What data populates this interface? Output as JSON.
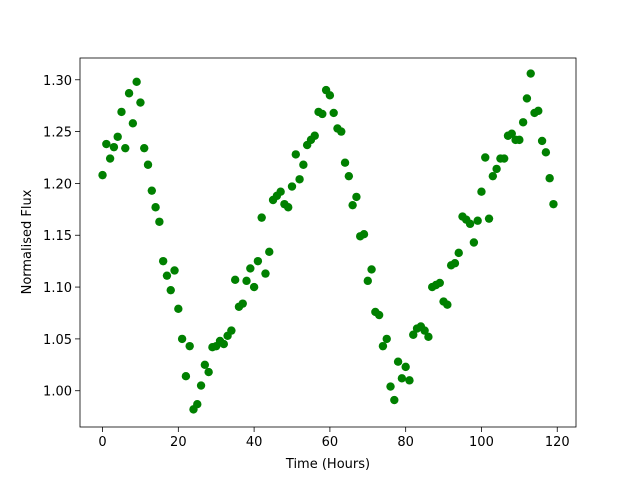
{
  "chart_data": {
    "type": "scatter",
    "xlabel": "Time (Hours)",
    "ylabel": "Normalised Flux",
    "color": "#008000",
    "x": [
      0,
      1,
      2,
      3,
      4,
      5,
      6,
      7,
      8,
      9,
      10,
      11,
      12,
      13,
      14,
      15,
      16,
      17,
      18,
      19,
      20,
      21,
      22,
      23,
      24,
      25,
      26,
      27,
      28,
      29,
      30,
      31,
      32,
      33,
      34,
      35,
      36,
      37,
      38,
      39,
      40,
      41,
      42,
      43,
      44,
      45,
      46,
      47,
      48,
      49,
      50,
      51,
      52,
      53,
      54,
      55,
      56,
      57,
      58,
      59,
      60,
      61,
      62,
      63,
      64,
      65,
      66,
      67,
      68,
      69,
      70,
      71,
      72,
      73,
      74,
      75,
      76,
      77,
      78,
      79,
      80,
      81,
      82,
      83,
      84,
      85,
      86,
      87,
      88,
      89,
      90,
      91,
      92,
      93,
      94,
      95,
      96,
      97,
      98,
      99,
      100,
      101,
      102,
      103,
      104,
      105,
      106,
      107,
      108,
      109,
      110,
      111,
      112,
      113,
      114,
      115,
      116,
      117,
      118,
      119
    ],
    "values": [
      1.208,
      1.238,
      1.224,
      1.235,
      1.245,
      1.269,
      1.234,
      1.287,
      1.258,
      1.298,
      1.278,
      1.234,
      1.218,
      1.193,
      1.177,
      1.163,
      1.125,
      1.111,
      1.097,
      1.116,
      1.079,
      1.05,
      1.014,
      1.043,
      0.982,
      0.987,
      1.005,
      1.025,
      1.018,
      1.042,
      1.043,
      1.048,
      1.045,
      1.053,
      1.058,
      1.107,
      1.081,
      1.084,
      1.106,
      1.118,
      1.1,
      1.125,
      1.167,
      1.113,
      1.134,
      1.184,
      1.188,
      1.192,
      1.18,
      1.177,
      1.197,
      1.228,
      1.204,
      1.218,
      1.237,
      1.242,
      1.246,
      1.269,
      1.267,
      1.29,
      1.285,
      1.268,
      1.253,
      1.25,
      1.22,
      1.207,
      1.179,
      1.187,
      1.149,
      1.151,
      1.106,
      1.117,
      1.076,
      1.073,
      1.043,
      1.05,
      1.004,
      0.991,
      1.028,
      1.012,
      1.023,
      1.01,
      1.054,
      1.06,
      1.062,
      1.058,
      1.052,
      1.1,
      1.102,
      1.104,
      1.086,
      1.083,
      1.121,
      1.123,
      1.133,
      1.168,
      1.165,
      1.161,
      1.143,
      1.164,
      1.192,
      1.225,
      1.166,
      1.207,
      1.214,
      1.224,
      1.224,
      1.246,
      1.248,
      1.242,
      1.242,
      1.259,
      1.282,
      1.306,
      1.268,
      1.27,
      1.241,
      1.23,
      1.205,
      1.18
    ],
    "xlim": [
      -5.95,
      124.95
    ],
    "xticks": [
      0,
      20,
      40,
      60,
      80,
      100,
      120
    ],
    "ylim": [
      0.965,
      1.321
    ],
    "yticks": [
      {
        "value": 1.0,
        "label": "1.00"
      },
      {
        "value": 1.05,
        "label": "1.05"
      },
      {
        "value": 1.1,
        "label": "1.10"
      },
      {
        "value": 1.15,
        "label": "1.15"
      },
      {
        "value": 1.2,
        "label": "1.20"
      },
      {
        "value": 1.25,
        "label": "1.25"
      },
      {
        "value": 1.3,
        "label": "1.30"
      }
    ]
  }
}
